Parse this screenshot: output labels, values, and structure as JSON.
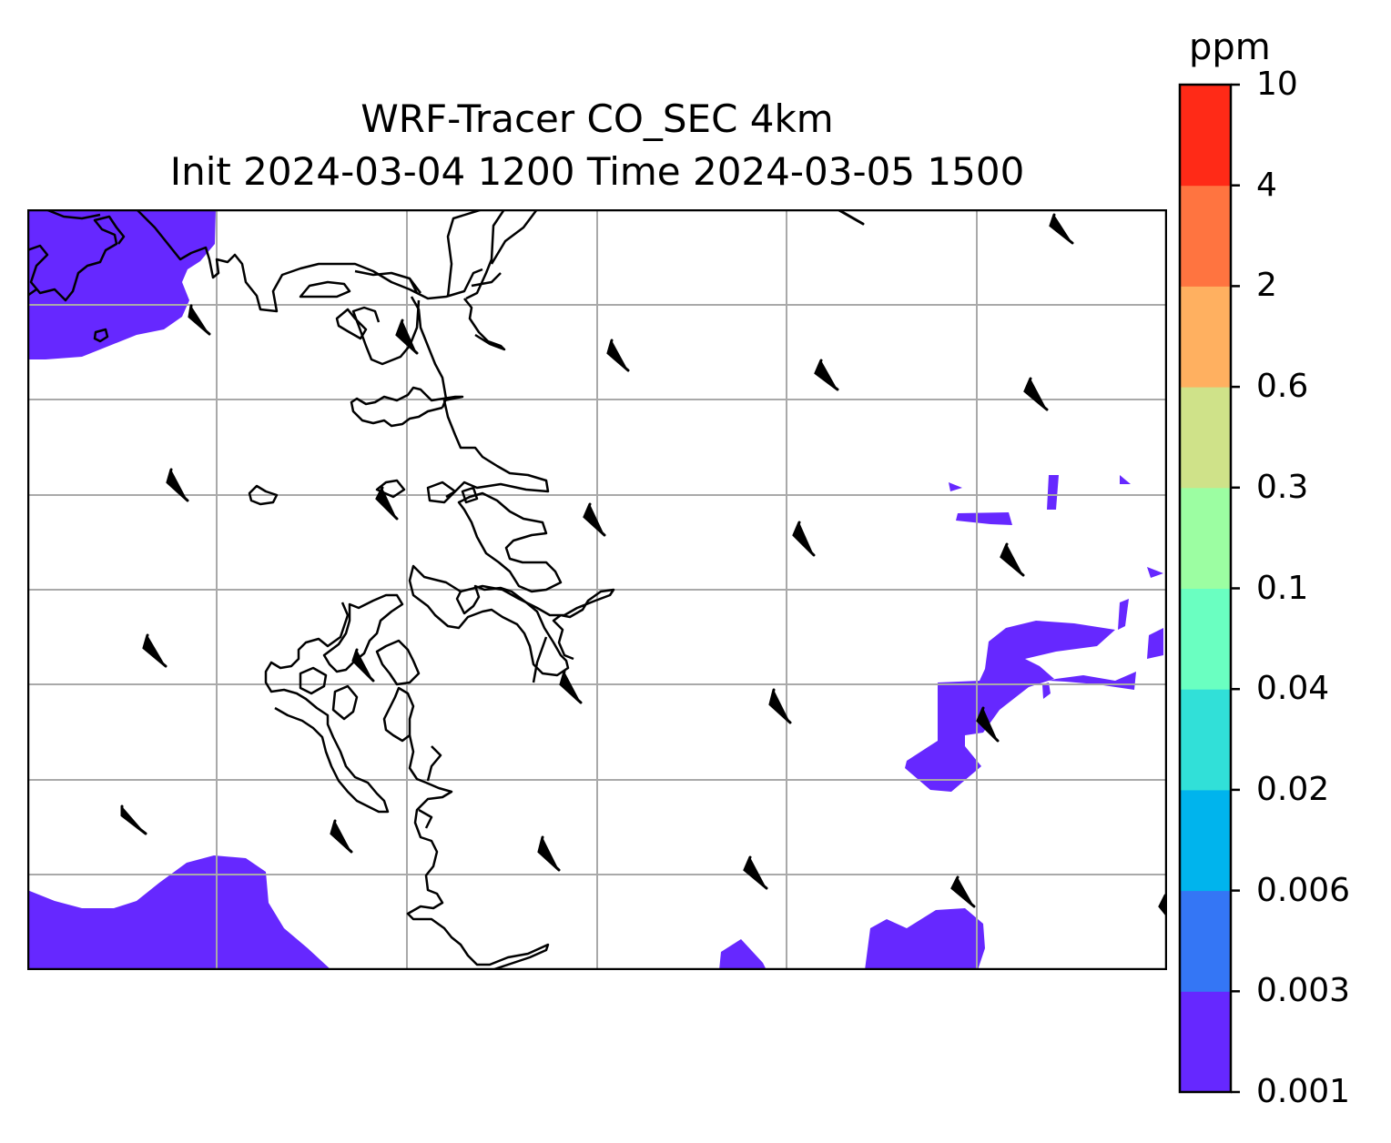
{
  "title": {
    "line1": "WRF-Tracer CO_SEC 4km",
    "line2": "Init 2024-03-04 1200 Time 2024-03-05 1500"
  },
  "colorbar": {
    "unit": "ppm",
    "levels": [
      "0.001",
      "0.003",
      "0.006",
      "0.02",
      "0.04",
      "0.1",
      "0.3",
      "0.6",
      "2",
      "4",
      "10"
    ],
    "colors": [
      "#6628ff",
      "#3476f5",
      "#00b4ed",
      "#31e0d8",
      "#6affc1",
      "#9cfea2",
      "#cfe289",
      "#ffb060",
      "#ff7440",
      "#ff2a17"
    ]
  },
  "map": {
    "field": "CO_SEC tracer",
    "gridlines": true,
    "coastlines": true,
    "wind_barbs": true,
    "shaded_level": "0.001–0.003 ppm"
  }
}
